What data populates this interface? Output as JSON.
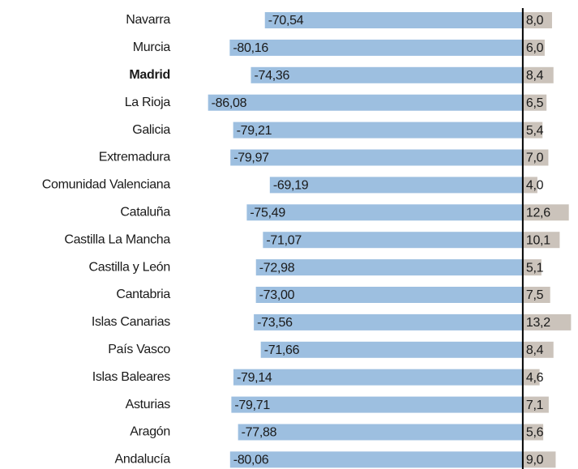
{
  "chart_data": {
    "type": "diverging-bar",
    "categories": [
      "Navarra",
      "Murcia",
      "Madrid",
      "La Rioja",
      "Galicia",
      "Extremadura",
      "Comunidad Valenciana",
      "Cataluña",
      "Castilla La Mancha",
      "Castilla y León",
      "Cantabria",
      "Islas Canarias",
      "País Vasco",
      "Islas Baleares",
      "Asturias",
      "Aragón",
      "Andalucía"
    ],
    "series": [
      {
        "color": "#9dbfe0",
        "values": [
          -70.54,
          -80.16,
          -74.36,
          -86.08,
          -79.21,
          -79.97,
          -69.19,
          -75.49,
          -71.07,
          -72.98,
          -73.0,
          -73.56,
          -71.66,
          -79.14,
          -79.71,
          -77.88,
          -80.06
        ],
        "value_labels": [
          "-70,54",
          "-80,16",
          "-74,36",
          "-86,08",
          "-79,21",
          "-79,97",
          "-69,19",
          "-75,49",
          "-71,07",
          "-72,98",
          "-73,00",
          "-73,56",
          "-71,66",
          "-79,14",
          "-79,71",
          "-77,88",
          "-80,06"
        ]
      },
      {
        "color": "#cbc3bb",
        "values": [
          8.0,
          6.0,
          8.4,
          6.5,
          5.4,
          7.0,
          4.0,
          12.6,
          10.1,
          5.1,
          7.5,
          13.2,
          8.4,
          4.6,
          7.1,
          5.6,
          9.0
        ],
        "value_labels": [
          "8,0",
          "6,0",
          "8,4",
          "6,5",
          "5,4",
          "7,0",
          "4,0",
          "12,6",
          "10,1",
          "5,1",
          "7,5",
          "13,2",
          "8,4",
          "4,6",
          "7,1",
          "5,6",
          "9,0"
        ]
      }
    ],
    "xlim": [
      -88,
      14
    ],
    "highlight": 2
  }
}
